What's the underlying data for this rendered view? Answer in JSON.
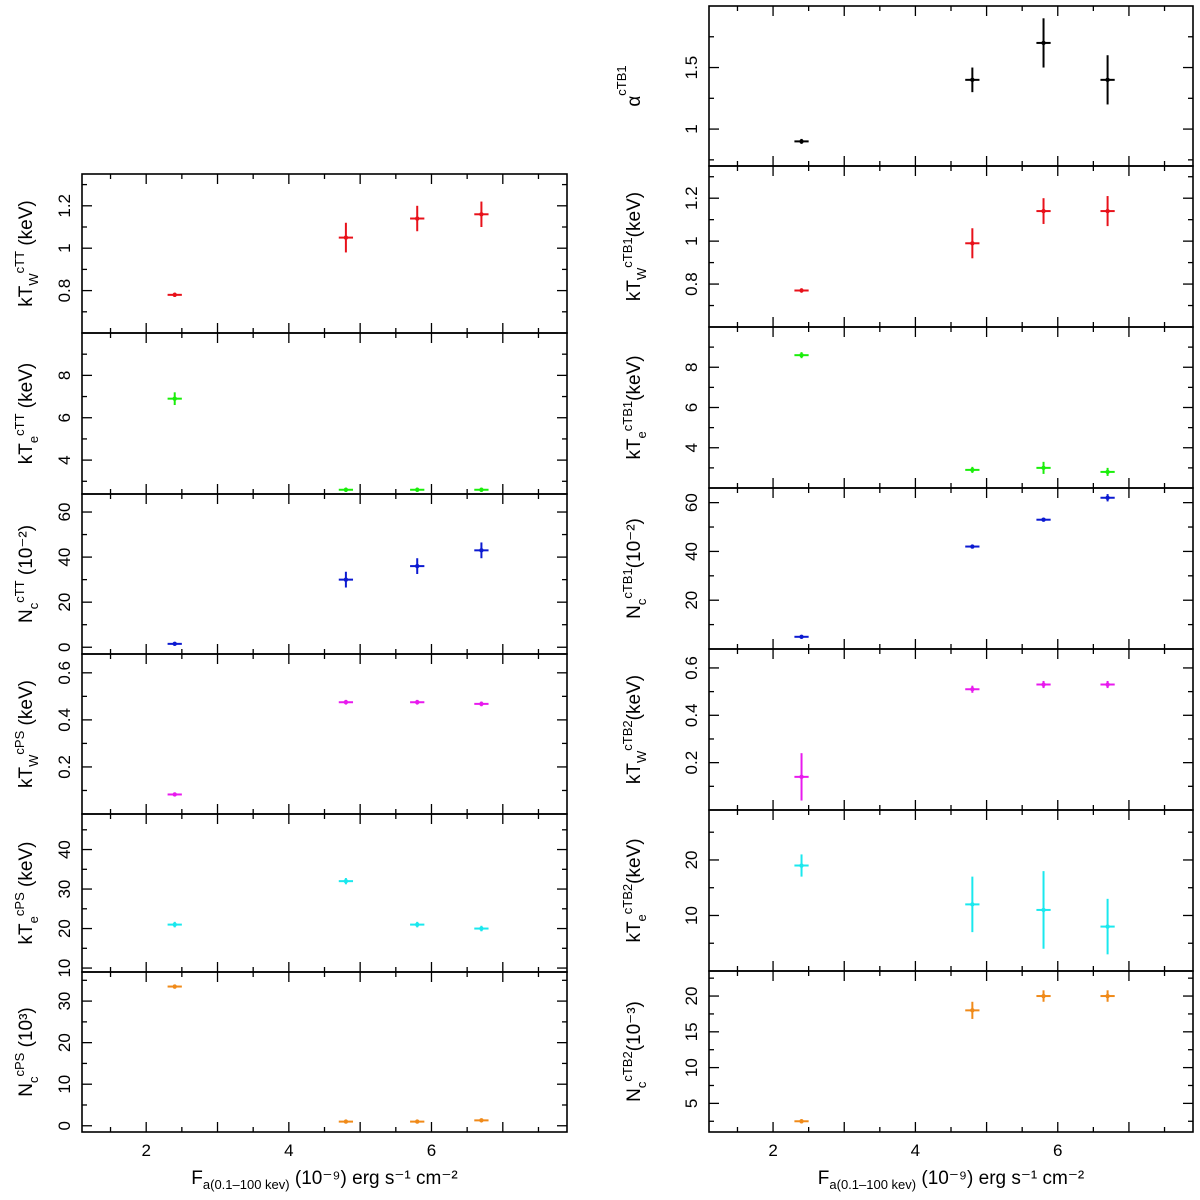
{
  "figure_title": "",
  "xaxis": {
    "label_main": "F",
    "label_sub": "a(0.1–100 kev)",
    "label_rest": " (10⁻⁹) erg s⁻¹ cm⁻²",
    "range": [
      1.1,
      7.9
    ],
    "major_ticks": [
      2,
      4,
      6
    ],
    "tick_labels": [
      "2",
      "4",
      "6"
    ]
  },
  "chart_data": [
    {
      "type": "scatter",
      "id": "L1",
      "column": "left",
      "title": "",
      "ylabel": {
        "base": "kT",
        "sub": "W",
        "sup": "cTT",
        "suffix": " (keV)"
      },
      "color": "#e8111a",
      "ylim": [
        0.6,
        1.35
      ],
      "yticks": [
        0.8,
        1,
        1.2
      ],
      "ytick_labels": [
        "0.8",
        "1",
        "1.2"
      ],
      "x": [
        2.4,
        4.8,
        5.8,
        6.7
      ],
      "xerr": [
        0.1,
        0.1,
        0.1,
        0.1
      ],
      "y": [
        0.78,
        1.05,
        1.14,
        1.16
      ],
      "yerr": [
        0.01,
        0.07,
        0.06,
        0.06
      ],
      "xlabel": ""
    },
    {
      "type": "scatter",
      "id": "L2",
      "column": "left",
      "title": "",
      "ylabel": {
        "base": "kT",
        "sub": "e",
        "sup": "cTT",
        "suffix": " (keV)"
      },
      "color": "#1aee0a",
      "ylim": [
        2.4,
        10
      ],
      "yticks": [
        4,
        6,
        8
      ],
      "ytick_labels": [
        "4",
        "6",
        "8"
      ],
      "x": [
        2.4,
        4.8,
        5.8,
        6.7
      ],
      "xerr": [
        0.1,
        0.1,
        0.1,
        0.1
      ],
      "y": [
        6.9,
        2.6,
        2.6,
        2.6
      ],
      "yerr": [
        0.3,
        0.1,
        0.1,
        0.1
      ],
      "xlabel": ""
    },
    {
      "type": "scatter",
      "id": "L3",
      "column": "left",
      "title": "",
      "ylabel": {
        "base": "N",
        "sub": "c",
        "sup": "cTT",
        "suffix": " (10⁻²)"
      },
      "color": "#0c1ad1",
      "ylim": [
        -3,
        68
      ],
      "yticks": [
        0,
        20,
        40,
        60
      ],
      "ytick_labels": [
        "0",
        "20",
        "40",
        "60"
      ],
      "x": [
        2.4,
        4.8,
        5.8,
        6.7
      ],
      "xerr": [
        0.1,
        0.1,
        0.1,
        0.1
      ],
      "y": [
        1.5,
        30,
        36,
        43
      ],
      "yerr": [
        0.3,
        3.5,
        3.5,
        3.5
      ],
      "xlabel": ""
    },
    {
      "type": "scatter",
      "id": "L4",
      "column": "left",
      "title": "",
      "ylabel": {
        "base": "kT",
        "sub": "W",
        "sup": "cPS",
        "suffix": " (keV)"
      },
      "color": "#e81aee",
      "ylim": [
        0,
        0.68
      ],
      "yticks": [
        0.2,
        0.4,
        0.6
      ],
      "ytick_labels": [
        "0.2",
        "0.4",
        "0.6"
      ],
      "x": [
        2.4,
        4.8,
        5.8,
        6.7
      ],
      "xerr": [
        0.1,
        0.1,
        0.1,
        0.1
      ],
      "y": [
        0.083,
        0.475,
        0.475,
        0.468
      ],
      "yerr": [
        0.004,
        0.01,
        0.01,
        0.01
      ],
      "xlabel": ""
    },
    {
      "type": "scatter",
      "id": "L5",
      "column": "left",
      "title": "",
      "ylabel": {
        "base": "kT",
        "sub": "e",
        "sup": "cPS",
        "suffix": " (keV)"
      },
      "color": "#1ae8ee",
      "ylim": [
        9,
        49
      ],
      "yticks": [
        10,
        20,
        30,
        40
      ],
      "ytick_labels": [
        "10",
        "20",
        "30",
        "40"
      ],
      "x": [
        2.4,
        4.8,
        5.8,
        6.7
      ],
      "xerr": [
        0.1,
        0.1,
        0.1,
        0.1
      ],
      "y": [
        21,
        32,
        21,
        20
      ],
      "yerr": [
        0.7,
        0.8,
        0.7,
        0.7
      ],
      "xlabel": ""
    },
    {
      "type": "scatter",
      "id": "L6",
      "column": "left",
      "title": "",
      "ylabel": {
        "base": "N",
        "sub": "c",
        "sup": "cPS",
        "suffix": " (10³)"
      },
      "color": "#f08a19",
      "ylim": [
        -1.5,
        37
      ],
      "yticks": [
        0,
        10,
        20,
        30
      ],
      "ytick_labels": [
        "0",
        "10",
        "20",
        "30"
      ],
      "x": [
        2.4,
        4.8,
        5.8,
        6.7
      ],
      "xerr": [
        0.1,
        0.1,
        0.1,
        0.1
      ],
      "y": [
        33.5,
        1,
        1,
        1.3
      ],
      "yerr": [
        0.5,
        0.3,
        0.3,
        0.3
      ],
      "xlabel": ""
    },
    {
      "type": "scatter",
      "id": "R1",
      "column": "right",
      "title": "",
      "ylabel": {
        "base": "α",
        "sub": "",
        "sup": "cTB1",
        "suffix": ""
      },
      "color": "#000000",
      "ylim": [
        0.7,
        2.0
      ],
      "yticks": [
        1,
        1.5
      ],
      "ytick_labels": [
        "1",
        "1.5"
      ],
      "x": [
        2.4,
        4.8,
        5.8,
        6.7
      ],
      "xerr": [
        0.1,
        0.1,
        0.1,
        0.1
      ],
      "y": [
        0.9,
        1.4,
        1.7,
        1.4
      ],
      "yerr": [
        0.02,
        0.1,
        0.2,
        0.2
      ],
      "xlabel": ""
    },
    {
      "type": "scatter",
      "id": "R2",
      "column": "right",
      "title": "",
      "ylabel": {
        "base": "kT",
        "sub": "W",
        "sup": "cTB1",
        "suffix": "(keV)"
      },
      "color": "#e8111a",
      "ylim": [
        0.6,
        1.35
      ],
      "yticks": [
        0.8,
        1,
        1.2
      ],
      "ytick_labels": [
        "0.8",
        "1",
        "1.2"
      ],
      "x": [
        2.4,
        4.8,
        5.8,
        6.7
      ],
      "xerr": [
        0.1,
        0.1,
        0.1,
        0.1
      ],
      "y": [
        0.77,
        0.99,
        1.14,
        1.14
      ],
      "yerr": [
        0.01,
        0.07,
        0.06,
        0.07
      ],
      "xlabel": ""
    },
    {
      "type": "scatter",
      "id": "R3",
      "column": "right",
      "title": "",
      "ylabel": {
        "base": "kT",
        "sub": "e",
        "sup": "cTB1",
        "suffix": "(keV)"
      },
      "color": "#1aee0a",
      "ylim": [
        2,
        10
      ],
      "yticks": [
        4,
        6,
        8
      ],
      "ytick_labels": [
        "4",
        "6",
        "8"
      ],
      "x": [
        2.4,
        4.8,
        5.8,
        6.7
      ],
      "xerr": [
        0.1,
        0.1,
        0.1,
        0.1
      ],
      "y": [
        8.6,
        2.9,
        3.0,
        2.8
      ],
      "yerr": [
        0.15,
        0.15,
        0.3,
        0.2
      ],
      "xlabel": ""
    },
    {
      "type": "scatter",
      "id": "R4",
      "column": "right",
      "title": "",
      "ylabel": {
        "base": "N",
        "sub": "c",
        "sup": "cTB1",
        "suffix": "(10⁻²)"
      },
      "color": "#0c1ad1",
      "ylim": [
        0,
        66
      ],
      "yticks": [
        20,
        40,
        60
      ],
      "ytick_labels": [
        "20",
        "40",
        "60"
      ],
      "x": [
        2.4,
        4.8,
        5.8,
        6.7
      ],
      "xerr": [
        0.1,
        0.1,
        0.1,
        0.1
      ],
      "y": [
        5,
        42,
        53,
        62
      ],
      "yerr": [
        0.3,
        0.6,
        0.7,
        1.5
      ],
      "xlabel": ""
    },
    {
      "type": "scatter",
      "id": "R5",
      "column": "right",
      "title": "",
      "ylabel": {
        "base": "kT",
        "sub": "W",
        "sup": "cTB2",
        "suffix": "(keV)"
      },
      "color": "#e81aee",
      "ylim": [
        0,
        0.68
      ],
      "yticks": [
        0.2,
        0.4,
        0.6
      ],
      "ytick_labels": [
        "0.2",
        "0.4",
        "0.6"
      ],
      "x": [
        2.4,
        4.8,
        5.8,
        6.7
      ],
      "xerr": [
        0.1,
        0.1,
        0.1,
        0.1
      ],
      "y": [
        0.14,
        0.51,
        0.53,
        0.53
      ],
      "yerr": [
        0.1,
        0.015,
        0.015,
        0.015
      ],
      "xlabel": ""
    },
    {
      "type": "scatter",
      "id": "R6",
      "column": "right",
      "title": "",
      "ylabel": {
        "base": "kT",
        "sub": "e",
        "sup": "cTB2",
        "suffix": "(keV)"
      },
      "color": "#1ae8ee",
      "ylim": [
        0,
        29
      ],
      "yticks": [
        10,
        20
      ],
      "ytick_labels": [
        "10",
        "20"
      ],
      "x": [
        2.4,
        4.8,
        5.8,
        6.7
      ],
      "xerr": [
        0.1,
        0.1,
        0.1,
        0.1
      ],
      "y": [
        19,
        12,
        11,
        8
      ],
      "yerr": [
        2,
        5,
        7,
        5
      ],
      "xlabel": ""
    },
    {
      "type": "scatter",
      "id": "R7",
      "column": "right",
      "title": "",
      "ylabel": {
        "base": "N",
        "sub": "c",
        "sup": "cTB2",
        "suffix": "(10⁻³)"
      },
      "color": "#f08a19",
      "ylim": [
        1,
        23.5
      ],
      "yticks": [
        5,
        10,
        15,
        20
      ],
      "ytick_labels": [
        "5",
        "10",
        "15",
        "20"
      ],
      "x": [
        2.4,
        4.8,
        5.8,
        6.7
      ],
      "xerr": [
        0.1,
        0.1,
        0.1,
        0.1
      ],
      "y": [
        2.5,
        18,
        20,
        20
      ],
      "yerr": [
        0.3,
        1.2,
        0.8,
        0.8
      ],
      "xlabel": ""
    }
  ]
}
